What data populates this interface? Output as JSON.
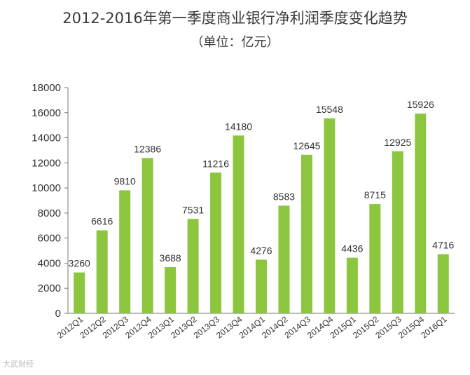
{
  "title": "2012-2016年第一季度商业银行净利润季度变化趋势",
  "subtitle": "（单位：亿元）",
  "watermark": "大武财经",
  "colors": {
    "bar": "#8cc63f",
    "axis": "#777777",
    "text": "#333333"
  },
  "chart_data": {
    "type": "bar",
    "categories": [
      "2012Q1",
      "2012Q2",
      "2012Q3",
      "2012Q4",
      "2013Q1",
      "2013Q2",
      "2013Q3",
      "2013Q4",
      "2014Q1",
      "2014Q2",
      "2014Q3",
      "2014Q4",
      "2015Q1",
      "2015Q2",
      "2015Q3",
      "2015Q4",
      "2016Q1"
    ],
    "values": [
      3260,
      6616,
      9810,
      12386,
      3688,
      7531,
      11216,
      14180,
      4276,
      8583,
      12645,
      15548,
      4436,
      8715,
      12925,
      15926,
      4716
    ],
    "ylim": [
      0,
      18000
    ],
    "yticks": [
      0,
      2000,
      4000,
      6000,
      8000,
      10000,
      12000,
      14000,
      16000,
      18000
    ],
    "grid": false
  }
}
